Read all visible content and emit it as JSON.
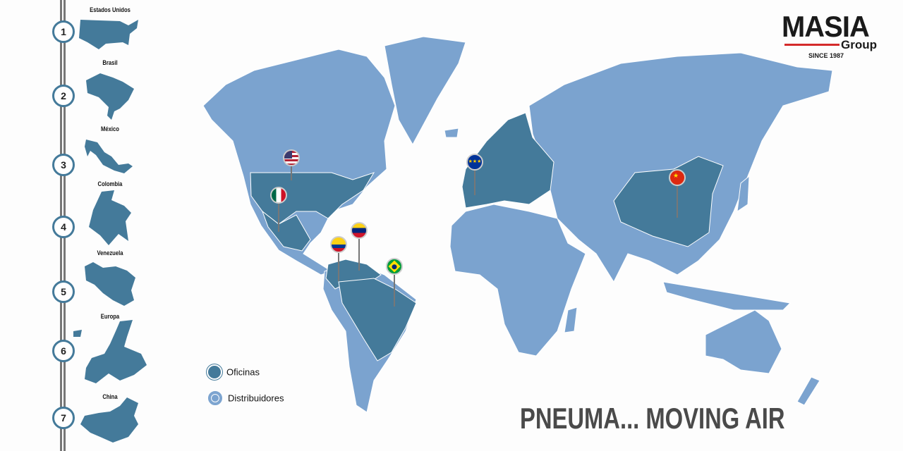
{
  "logo": {
    "brand": "MASIA",
    "sub": "Group",
    "since": "SINCE 1987"
  },
  "sidebar": {
    "items": [
      {
        "number": "1",
        "label": "Estados Unidos"
      },
      {
        "number": "2",
        "label": "Brasil"
      },
      {
        "number": "3",
        "label": "México"
      },
      {
        "number": "4",
        "label": "Colombia"
      },
      {
        "number": "5",
        "label": "Venezuela"
      },
      {
        "number": "6",
        "label": "Europa"
      },
      {
        "number": "7",
        "label": "China"
      }
    ]
  },
  "legend": {
    "items": [
      {
        "label": "Oficinas",
        "color": "#447a9a"
      },
      {
        "label": "Distribuidores",
        "color": "#7ba3cf"
      }
    ]
  },
  "map": {
    "office_color": "#447a9a",
    "distributor_color": "#7ba3cf",
    "pins": [
      "usa-flag-icon",
      "mexico-flag-icon",
      "colombia-flag-icon",
      "venezuela-flag-icon",
      "brazil-flag-icon",
      "eu-flag-icon",
      "china-flag-icon"
    ]
  },
  "tagline": "PNEUMA... MOVING AIR"
}
